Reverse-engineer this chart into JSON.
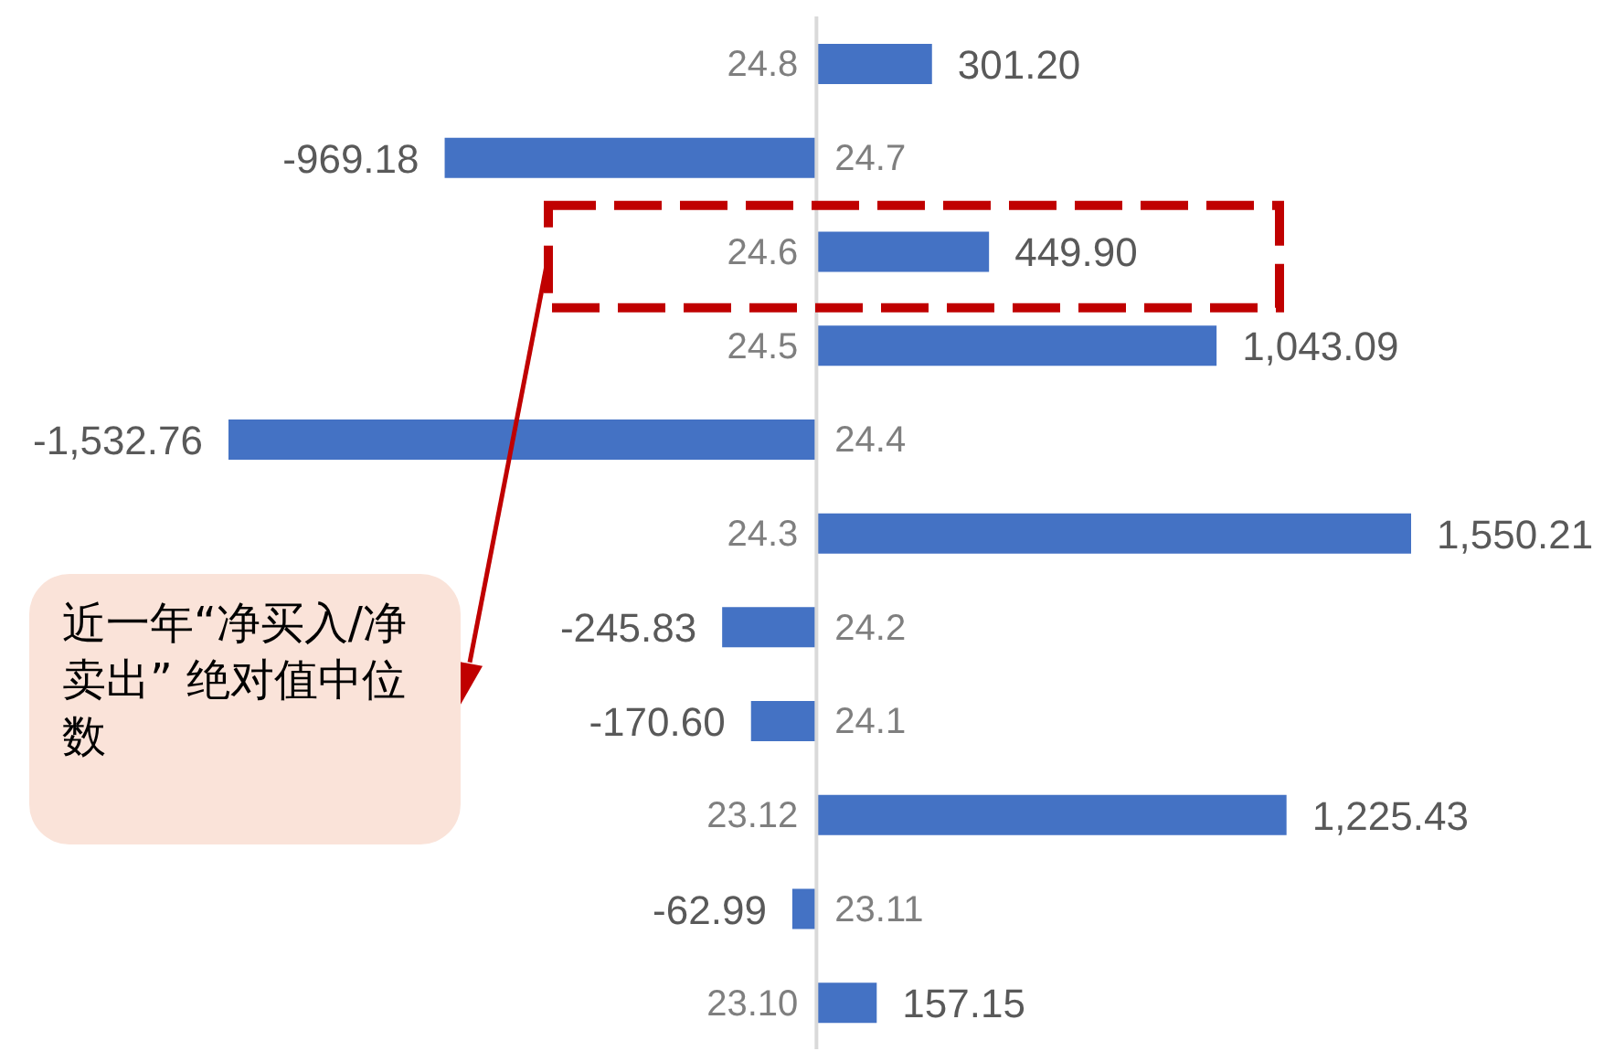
{
  "chart_data": {
    "type": "bar",
    "orientation": "horizontal",
    "categories": [
      "24.8",
      "24.7",
      "24.6",
      "24.5",
      "24.4",
      "24.3",
      "24.2",
      "24.1",
      "23.12",
      "23.11",
      "23.10"
    ],
    "values": [
      301.2,
      -969.18,
      449.9,
      1043.09,
      -1532.76,
      1550.21,
      -245.83,
      -170.6,
      1225.43,
      -62.99,
      157.15
    ],
    "value_labels": [
      "301.20",
      "-969.18",
      "449.90",
      "1,043.09",
      "-1,532.76",
      "1,550.21",
      "-245.83",
      "-170.60",
      "1,225.43",
      "-62.99",
      "157.15"
    ],
    "color": "#4472c4",
    "annotations": [
      "近一年“净买入/净卖出” 绝对值中位数"
    ]
  }
}
